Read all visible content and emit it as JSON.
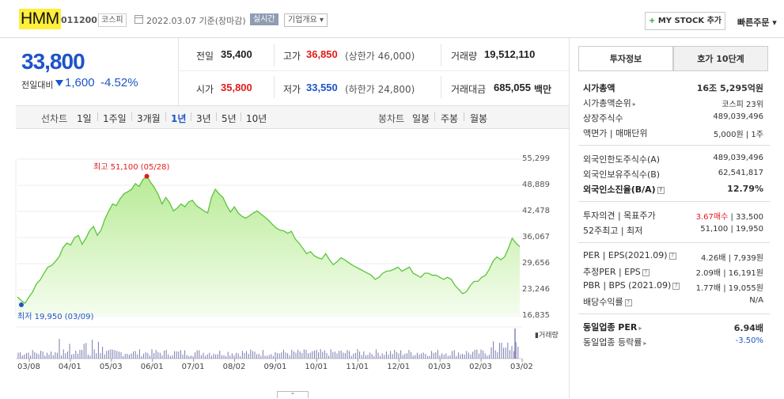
{
  "header": {
    "name": "HMM",
    "code": "011200",
    "market": "코스피",
    "date": "2022.03.07 기준(장마감)",
    "realtime": "실시간",
    "company_info": "기업개요 ▾",
    "mystock": "MY STOCK 추가",
    "mystock_plus": "+",
    "quick_order": "빠른주문 ▾"
  },
  "price": {
    "current": "33,800",
    "change_label": "전일대비",
    "change": "1,600",
    "change_pct": "-4.52%",
    "prev_label": "전일",
    "prev": "35,400",
    "open_label": "시가",
    "open": "35,800",
    "high_label": "고가",
    "high": "36,850",
    "upper_limit": "(상한가 46,000)",
    "low_label": "저가",
    "low": "33,550",
    "lower_limit": "(하한가 24,800)",
    "volume_label": "거래량",
    "volume": "19,512,110",
    "amount_label": "거래대금",
    "amount": "685,055",
    "amount_unit": "백만"
  },
  "period": {
    "line_label": "선차트",
    "line_items": [
      "1일",
      "1주일",
      "3개월",
      "1년",
      "3년",
      "5년",
      "10년"
    ],
    "selected": "1년",
    "candle_label": "봉차트",
    "candle_items": [
      "일봉",
      "주봉",
      "월봉"
    ]
  },
  "chart_data": {
    "type": "area",
    "y_ticks": [
      "55,299",
      "48,889",
      "42,478",
      "36,067",
      "29,656",
      "23,246",
      "16,835"
    ],
    "ylim": [
      16835,
      55299
    ],
    "x_ticks": [
      "03/08",
      "04/01",
      "05/03",
      "06/01",
      "07/01",
      "08/02",
      "09/01",
      "10/01",
      "11/01",
      "12/01",
      "01/03",
      "02/03",
      "03/02"
    ],
    "max_label": "최고 51,100 (05/28)",
    "min_label": "최저 19,950 (03/09)",
    "volume_label": "거래량",
    "values": [
      21500,
      20600,
      19950,
      21400,
      22700,
      24700,
      25700,
      27300,
      28800,
      29200,
      30200,
      31400,
      33600,
      34700,
      34200,
      36000,
      36600,
      34400,
      35900,
      37800,
      38800,
      36600,
      37900,
      40600,
      42600,
      44300,
      43900,
      45600,
      46800,
      47300,
      47900,
      49300,
      48600,
      50300,
      51100,
      49600,
      48300,
      46600,
      44300,
      45900,
      44600,
      42600,
      43300,
      44300,
      43600,
      44800,
      45200,
      43900,
      43300,
      42600,
      42100,
      45900,
      47900,
      46800,
      45900,
      43900,
      42300,
      43600,
      42100,
      41300,
      40800,
      41400,
      42100,
      42600,
      41800,
      41100,
      40300,
      39300,
      38400,
      37900,
      37700,
      37100,
      37600,
      35700,
      34700,
      33400,
      32100,
      32600,
      31600,
      31100,
      30800,
      32100,
      30600,
      29400,
      30100,
      31100,
      30600,
      29900,
      29300,
      28800,
      28300,
      27800,
      27300,
      26800,
      25800,
      26300,
      27300,
      27800,
      27900,
      28300,
      28800,
      27800,
      28300,
      28800,
      27300,
      26800,
      26300,
      27300,
      27300,
      26800,
      26800,
      26300,
      25800,
      26300,
      25800,
      24300,
      23300,
      22300,
      22800,
      24300,
      25300,
      25300,
      26300,
      26800,
      28300,
      30300,
      31300,
      30600,
      31300,
      33400,
      35900,
      34700,
      33800
    ]
  },
  "panel": {
    "tab_active": "투자정보",
    "tab_other": "호가 10단계",
    "rows1": [
      {
        "label": "시가총액",
        "value": "16조 5,295억원"
      },
      {
        "label": "시가총액순위",
        "value": "코스피 23위"
      },
      {
        "label": "상장주식수",
        "value": "489,039,496"
      },
      {
        "label": "액면가 | 매매단위",
        "value": "5,000원 | 1주"
      }
    ],
    "rows2": [
      {
        "label": "외국인한도주식수(A)",
        "value": "489,039,496"
      },
      {
        "label": "외국인보유주식수(B)",
        "value": "62,541,817"
      },
      {
        "label": "외국인소진율(B/A)",
        "value": "12.79%"
      }
    ],
    "rows3": [
      {
        "label": "투자의견 | 목표주가",
        "value_a": "3.67매수",
        "value_b": " | 33,500"
      },
      {
        "label": "52주최고 | 최저",
        "value": "51,100 | 19,950"
      }
    ],
    "rows4": [
      {
        "label": "PER | EPS(2021.09)",
        "value": "4.26배 | 7,939원"
      },
      {
        "label": "추정PER | EPS",
        "value": "2.09배 | 16,191원"
      },
      {
        "label": "PBR | BPS (2021.09)",
        "value": "1.77배 | 19,055원"
      },
      {
        "label": "배당수익률",
        "value": "N/A"
      }
    ],
    "rows5": [
      {
        "label": "동일업종 PER",
        "value": "6.94배"
      },
      {
        "label": "동일업종 등락률",
        "value": "-3.50%"
      }
    ]
  },
  "colors": {
    "down": "#1e54c8",
    "up": "#e31b1b",
    "chart_fill": "#c8f0a8",
    "chart_line": "#5cc43c"
  }
}
